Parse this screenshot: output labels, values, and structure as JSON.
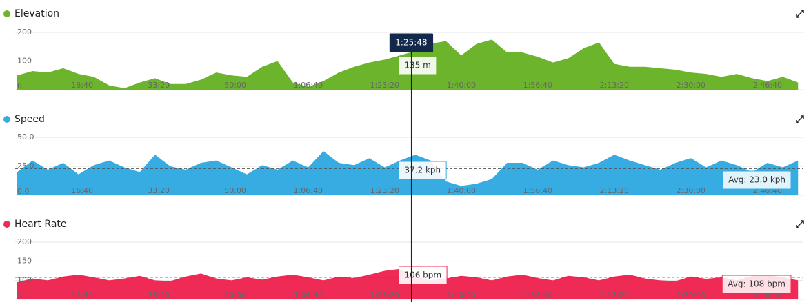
{
  "chart_data": [
    {
      "type": "area",
      "title": "Elevation",
      "color": "#6bb42c",
      "x": [
        0,
        200,
        400,
        600,
        800,
        1000,
        1200,
        1400,
        1600,
        1800,
        2000,
        2200,
        2400,
        2600,
        2800,
        3000,
        3200,
        3400,
        3600,
        3800,
        4000,
        4200,
        4400,
        4600,
        4800,
        5000,
        5200,
        5400,
        5600,
        5800,
        6000,
        6200,
        6400,
        6600,
        6800,
        7000,
        7200,
        7400,
        7600,
        7800,
        8000,
        8200,
        8400,
        8600,
        8800,
        9000,
        9200,
        9400,
        9600,
        9800,
        10000,
        10200
      ],
      "values": [
        50,
        65,
        60,
        75,
        55,
        45,
        15,
        5,
        25,
        40,
        20,
        20,
        35,
        60,
        50,
        45,
        80,
        100,
        25,
        10,
        30,
        60,
        80,
        95,
        105,
        120,
        135,
        160,
        170,
        120,
        160,
        175,
        130,
        130,
        115,
        95,
        110,
        145,
        165,
        90,
        80,
        80,
        75,
        70,
        60,
        55,
        45,
        55,
        40,
        30,
        45,
        25
      ],
      "xlim": [
        0,
        10270
      ],
      "xticks": [
        {
          "value": 1000,
          "label": "16:40"
        },
        {
          "value": 2000,
          "label": "33:20"
        },
        {
          "value": 3000,
          "label": "50:00"
        },
        {
          "value": 4000,
          "label": "1:06:40"
        },
        {
          "value": 5000,
          "label": "1:23:20"
        },
        {
          "value": 6000,
          "label": "1:40:00"
        },
        {
          "value": 7000,
          "label": "1:56:40"
        },
        {
          "value": 8000,
          "label": "2:13:20"
        },
        {
          "value": 9000,
          "label": "2:30:00"
        },
        {
          "value": 10000,
          "label": "2:46:40"
        }
      ],
      "ylim": [
        0,
        200
      ],
      "yticks": [
        0,
        100,
        200
      ],
      "grid": true,
      "cursor_x": {
        "value": 5148,
        "label": "1:25:48"
      },
      "cursor_value": 135,
      "cursor_label": "135 m"
    },
    {
      "type": "area",
      "title": "Speed",
      "color": "#36ace2",
      "x": [
        0,
        200,
        400,
        600,
        800,
        1000,
        1200,
        1400,
        1600,
        1800,
        2000,
        2200,
        2400,
        2600,
        2800,
        3000,
        3200,
        3400,
        3600,
        3800,
        4000,
        4200,
        4400,
        4600,
        4800,
        5000,
        5200,
        5400,
        5600,
        5800,
        6000,
        6200,
        6400,
        6600,
        6800,
        7000,
        7200,
        7400,
        7600,
        7800,
        8000,
        8200,
        8400,
        8600,
        8800,
        9000,
        9200,
        9400,
        9600,
        9800,
        10000,
        10200
      ],
      "values": [
        20,
        30,
        22,
        28,
        18,
        26,
        30,
        24,
        20,
        35,
        25,
        22,
        28,
        30,
        24,
        18,
        26,
        22,
        30,
        24,
        38,
        28,
        26,
        32,
        24,
        30,
        35,
        30,
        12,
        8,
        10,
        14,
        28,
        28,
        22,
        30,
        26,
        24,
        28,
        35,
        30,
        26,
        22,
        28,
        32,
        24,
        30,
        26,
        20,
        28,
        24,
        30
      ],
      "xlim": [
        0,
        10270
      ],
      "xticks": [
        {
          "value": 1000,
          "label": "16:40"
        },
        {
          "value": 2000,
          "label": "33:20"
        },
        {
          "value": 3000,
          "label": "50:00"
        },
        {
          "value": 4000,
          "label": "1:06:40"
        },
        {
          "value": 5000,
          "label": "1:23:20"
        },
        {
          "value": 6000,
          "label": "1:40:00"
        },
        {
          "value": 7000,
          "label": "1:56:40"
        },
        {
          "value": 8000,
          "label": "2:13:20"
        },
        {
          "value": 9000,
          "label": "2:30:00"
        },
        {
          "value": 10000,
          "label": "2:46:40"
        }
      ],
      "ylim": [
        0,
        50
      ],
      "yticks": [
        {
          "value": 0,
          "label": "0.0"
        },
        {
          "value": 25,
          "label": "25.0"
        },
        {
          "value": 50,
          "label": "50.0"
        }
      ],
      "grid": true,
      "avg": 23.0,
      "avg_label": "Avg: 23.0 kph",
      "cursor_value": 37.2,
      "cursor_label": "37.2 kph"
    },
    {
      "type": "area",
      "title": "Heart Rate",
      "color": "#ee2a55",
      "x": [
        0,
        200,
        400,
        600,
        800,
        1000,
        1200,
        1400,
        1600,
        1800,
        2000,
        2200,
        2400,
        2600,
        2800,
        3000,
        3200,
        3400,
        3600,
        3800,
        4000,
        4200,
        4400,
        4600,
        4800,
        5000,
        5200,
        5400,
        5600,
        5800,
        6000,
        6200,
        6400,
        6600,
        6800,
        7000,
        7200,
        7400,
        7600,
        7800,
        8000,
        8200,
        8400,
        8600,
        8800,
        9000,
        9200,
        9400,
        9600,
        9800,
        10000,
        10200
      ],
      "values": [
        95,
        105,
        100,
        110,
        115,
        108,
        100,
        105,
        112,
        100,
        98,
        110,
        118,
        105,
        100,
        108,
        102,
        110,
        115,
        108,
        100,
        110,
        106,
        115,
        125,
        130,
        110,
        100,
        105,
        112,
        108,
        100,
        110,
        115,
        106,
        100,
        112,
        108,
        100,
        110,
        115,
        105,
        100,
        98,
        110,
        104,
        108,
        100,
        112,
        115,
        108,
        100
      ],
      "xlim": [
        0,
        10270
      ],
      "xticks": [
        {
          "value": 1000,
          "label": "16:40"
        },
        {
          "value": 2000,
          "label": "33:20"
        },
        {
          "value": 3000,
          "label": "50:00"
        },
        {
          "value": 4000,
          "label": "1:06:40"
        },
        {
          "value": 5000,
          "label": "1:23:20"
        },
        {
          "value": 6000,
          "label": "1:40:00"
        },
        {
          "value": 7000,
          "label": "1:56:40"
        },
        {
          "value": 8000,
          "label": "2:13:20"
        },
        {
          "value": 9000,
          "label": "2:30:00"
        },
        {
          "value": 10000,
          "label": "2:46:40"
        }
      ],
      "ylim": [
        50,
        200
      ],
      "yticks": [
        50,
        100,
        150,
        200
      ],
      "grid": true,
      "avg": 108,
      "avg_label": "Avg: 108 bpm",
      "cursor_value": 106,
      "cursor_label": "106 bpm"
    }
  ]
}
